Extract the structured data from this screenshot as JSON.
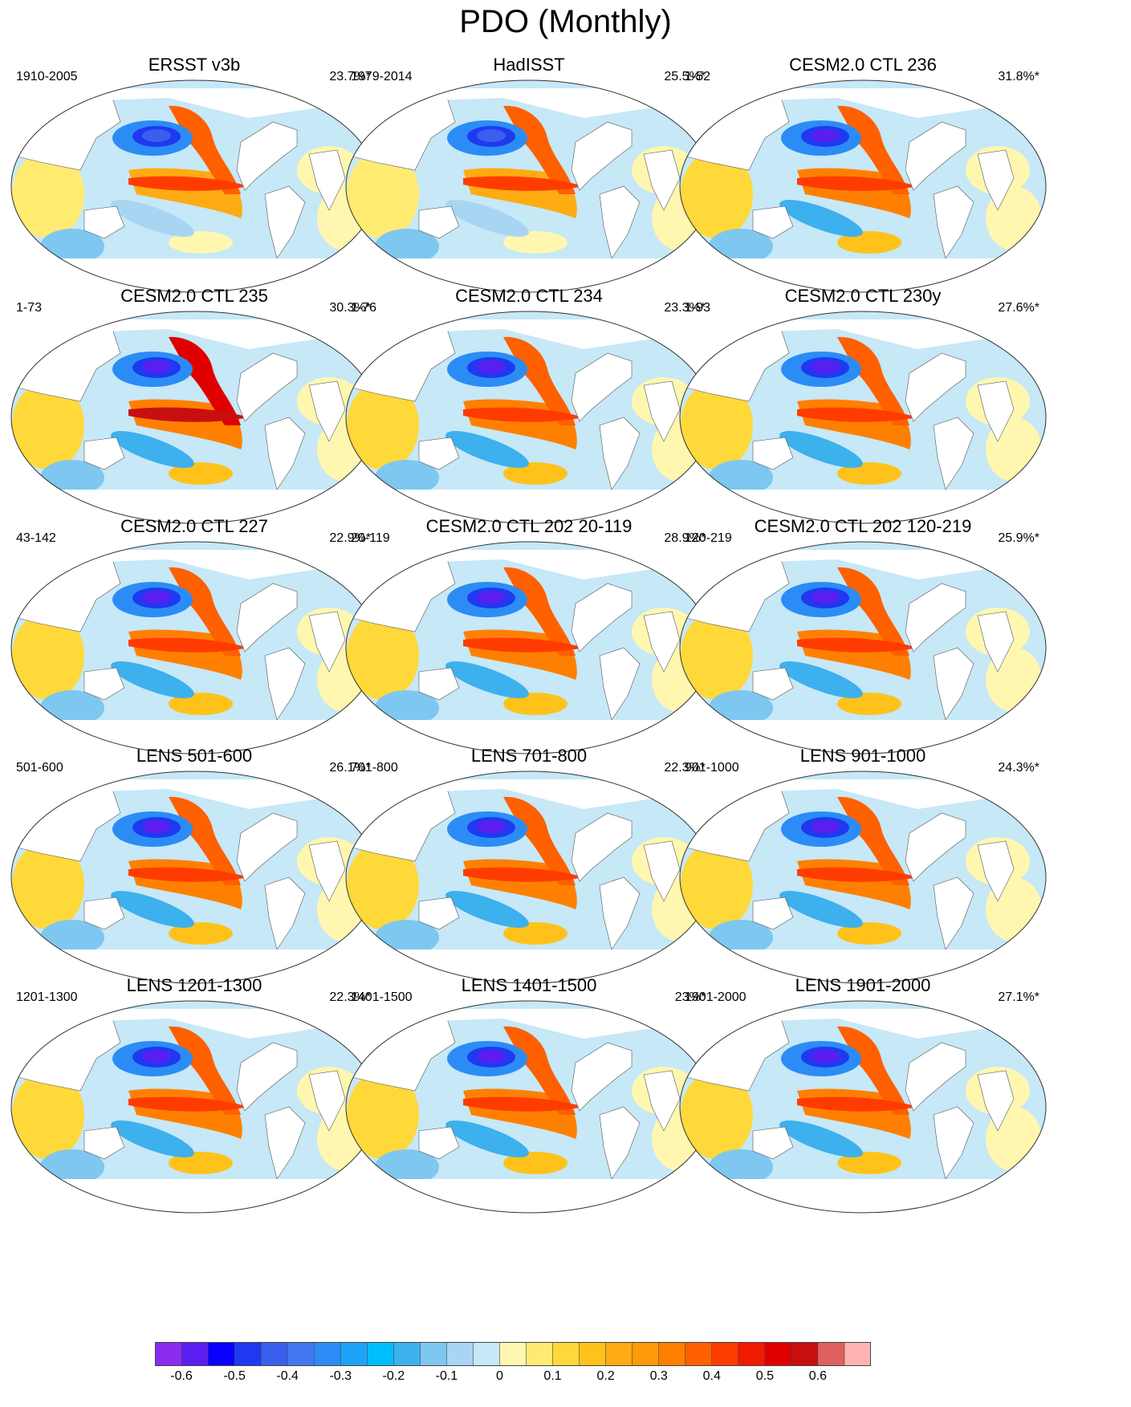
{
  "title": "PDO (Monthly)",
  "panels": [
    {
      "title": "ERSST v3b",
      "years": "1910-2005",
      "pct": "23.7%*",
      "variant": "obs1"
    },
    {
      "title": "HadISST",
      "years": "1979-2014",
      "pct": "25.5%*",
      "variant": "obs2"
    },
    {
      "title": "CESM2.0 CTL 236",
      "years": "1-52",
      "pct": "31.8%*",
      "variant": "ctl"
    },
    {
      "title": "CESM2.0 CTL 235",
      "years": "1-73",
      "pct": "30.3%*",
      "variant": "ctl_strong"
    },
    {
      "title": "CESM2.0 CTL 234",
      "years": "1-76",
      "pct": "23.3%*",
      "variant": "ctl"
    },
    {
      "title": "CESM2.0 CTL 230y",
      "years": "1-93",
      "pct": "27.6%*",
      "variant": "ctl"
    },
    {
      "title": "CESM2.0 CTL 227",
      "years": "43-142",
      "pct": "22.9%*",
      "variant": "ctl"
    },
    {
      "title": "CESM2.0 CTL 202 20-119",
      "years": "20-119",
      "pct": "28.9%*",
      "variant": "ctl"
    },
    {
      "title": "CESM2.0 CTL 202 120-219",
      "years": "120-219",
      "pct": "25.9%*",
      "variant": "ctl"
    },
    {
      "title": "LENS 501-600",
      "years": "501-600",
      "pct": "26.1%*",
      "variant": "lens"
    },
    {
      "title": "LENS 701-800",
      "years": "701-800",
      "pct": "22.3%*",
      "variant": "lens"
    },
    {
      "title": "LENS 901-1000",
      "years": "901-1000",
      "pct": "24.3%*",
      "variant": "lens"
    },
    {
      "title": "LENS 1201-1300",
      "years": "1201-1300",
      "pct": "22.3%*",
      "variant": "lens"
    },
    {
      "title": "LENS 1401-1500",
      "years": "1401-1500",
      "pct": "23%*",
      "variant": "lens"
    },
    {
      "title": "LENS 1901-2000",
      "years": "1901-2000",
      "pct": "27.1%*",
      "variant": "lens"
    }
  ],
  "colorbar": {
    "colors": [
      "#8b2cf0",
      "#5a1ff0",
      "#0a00ff",
      "#1f39f0",
      "#3a5fee",
      "#4478f2",
      "#2c8cf5",
      "#1ea3f8",
      "#00bdfb",
      "#3db0ee",
      "#7ec7f0",
      "#a8d6f2",
      "#c6e8f7",
      "#fff7b0",
      "#ffeb72",
      "#ffd83a",
      "#ffc21a",
      "#ffab12",
      "#ff9a08",
      "#ff8000",
      "#ff6000",
      "#ff3c00",
      "#f01a00",
      "#e00000",
      "#c80f0f",
      "#e06060",
      "#ffb3b3"
    ],
    "labels": [
      "-0.6",
      "-0.5",
      "-0.4",
      "-0.3",
      "-0.2",
      "-0.1",
      "0",
      "0.1",
      "0.2",
      "0.3",
      "0.4",
      "0.5",
      "0.6"
    ]
  }
}
